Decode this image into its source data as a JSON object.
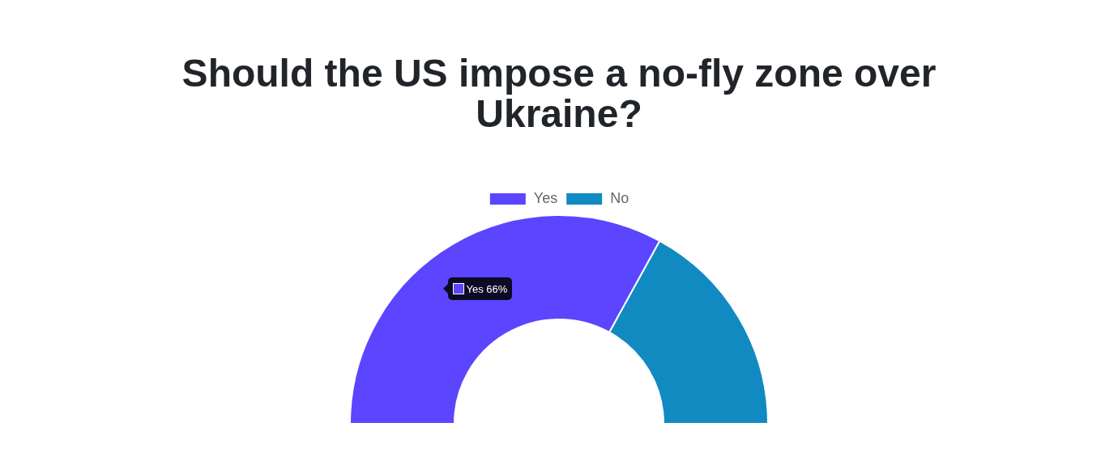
{
  "chart_data": {
    "type": "donut",
    "title": "Should the US impose a no-fly zone over Ukraine?",
    "categories": [
      "Yes",
      "No"
    ],
    "values": [
      66,
      34
    ],
    "colors": [
      "#5b45ff",
      "#118ac2"
    ],
    "value_labels": [
      "66%",
      null
    ],
    "legend": "top"
  }
}
